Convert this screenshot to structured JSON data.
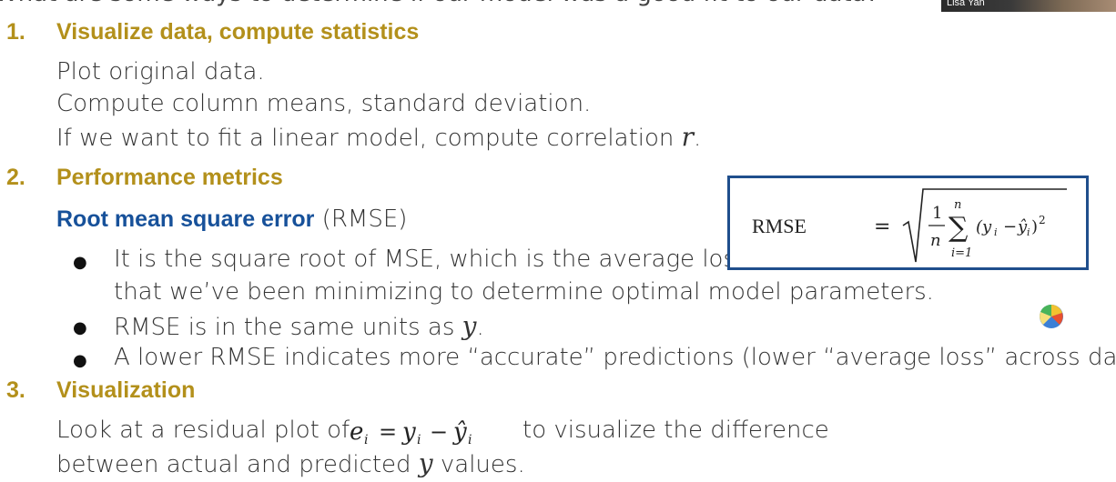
{
  "header": {
    "question": "What are some ways to determine if our model was a good fit to our data?",
    "presenter_name": "Lisa Yan"
  },
  "sections": [
    {
      "number": "1.",
      "title": "Visualize data, compute statistics",
      "lines": [
        "Plot original data.",
        "Compute column means, standard deviation.",
        "If we want to fit a linear model, compute correlation"
      ],
      "symbol_r": "r",
      "period": "."
    },
    {
      "number": "2.",
      "title": "Performance metrics",
      "subtitle_bold": "Root mean square error",
      "subtitle_rest": " (RMSE)",
      "bullets": [
        "It is the square root of MSE, which is the average los",
        "that we’ve been minimizing to determine optimal model parameters.",
        "RMSE is in the same units as",
        "A lower RMSE indicates more “accurate” predictions (lower “average loss” across data)"
      ],
      "bullet_symbol": "●",
      "symbol_y": "y",
      "period": ".",
      "formula_label": "RMSE"
    },
    {
      "number": "3.",
      "title": "Visualization",
      "line1_pre": "Look at a residual plot of",
      "line1_post": "to visualize the difference",
      "line2_pre": "between actual and predicted",
      "symbol_y": "y",
      "line2_post": " values."
    }
  ],
  "colors": {
    "heading": "#b3901b",
    "accent_blue": "#17519a",
    "box_border": "#1f4e8c"
  },
  "icons": {
    "presenter_video": "video-thumbnail",
    "app_logo": "pie-logo-icon"
  }
}
